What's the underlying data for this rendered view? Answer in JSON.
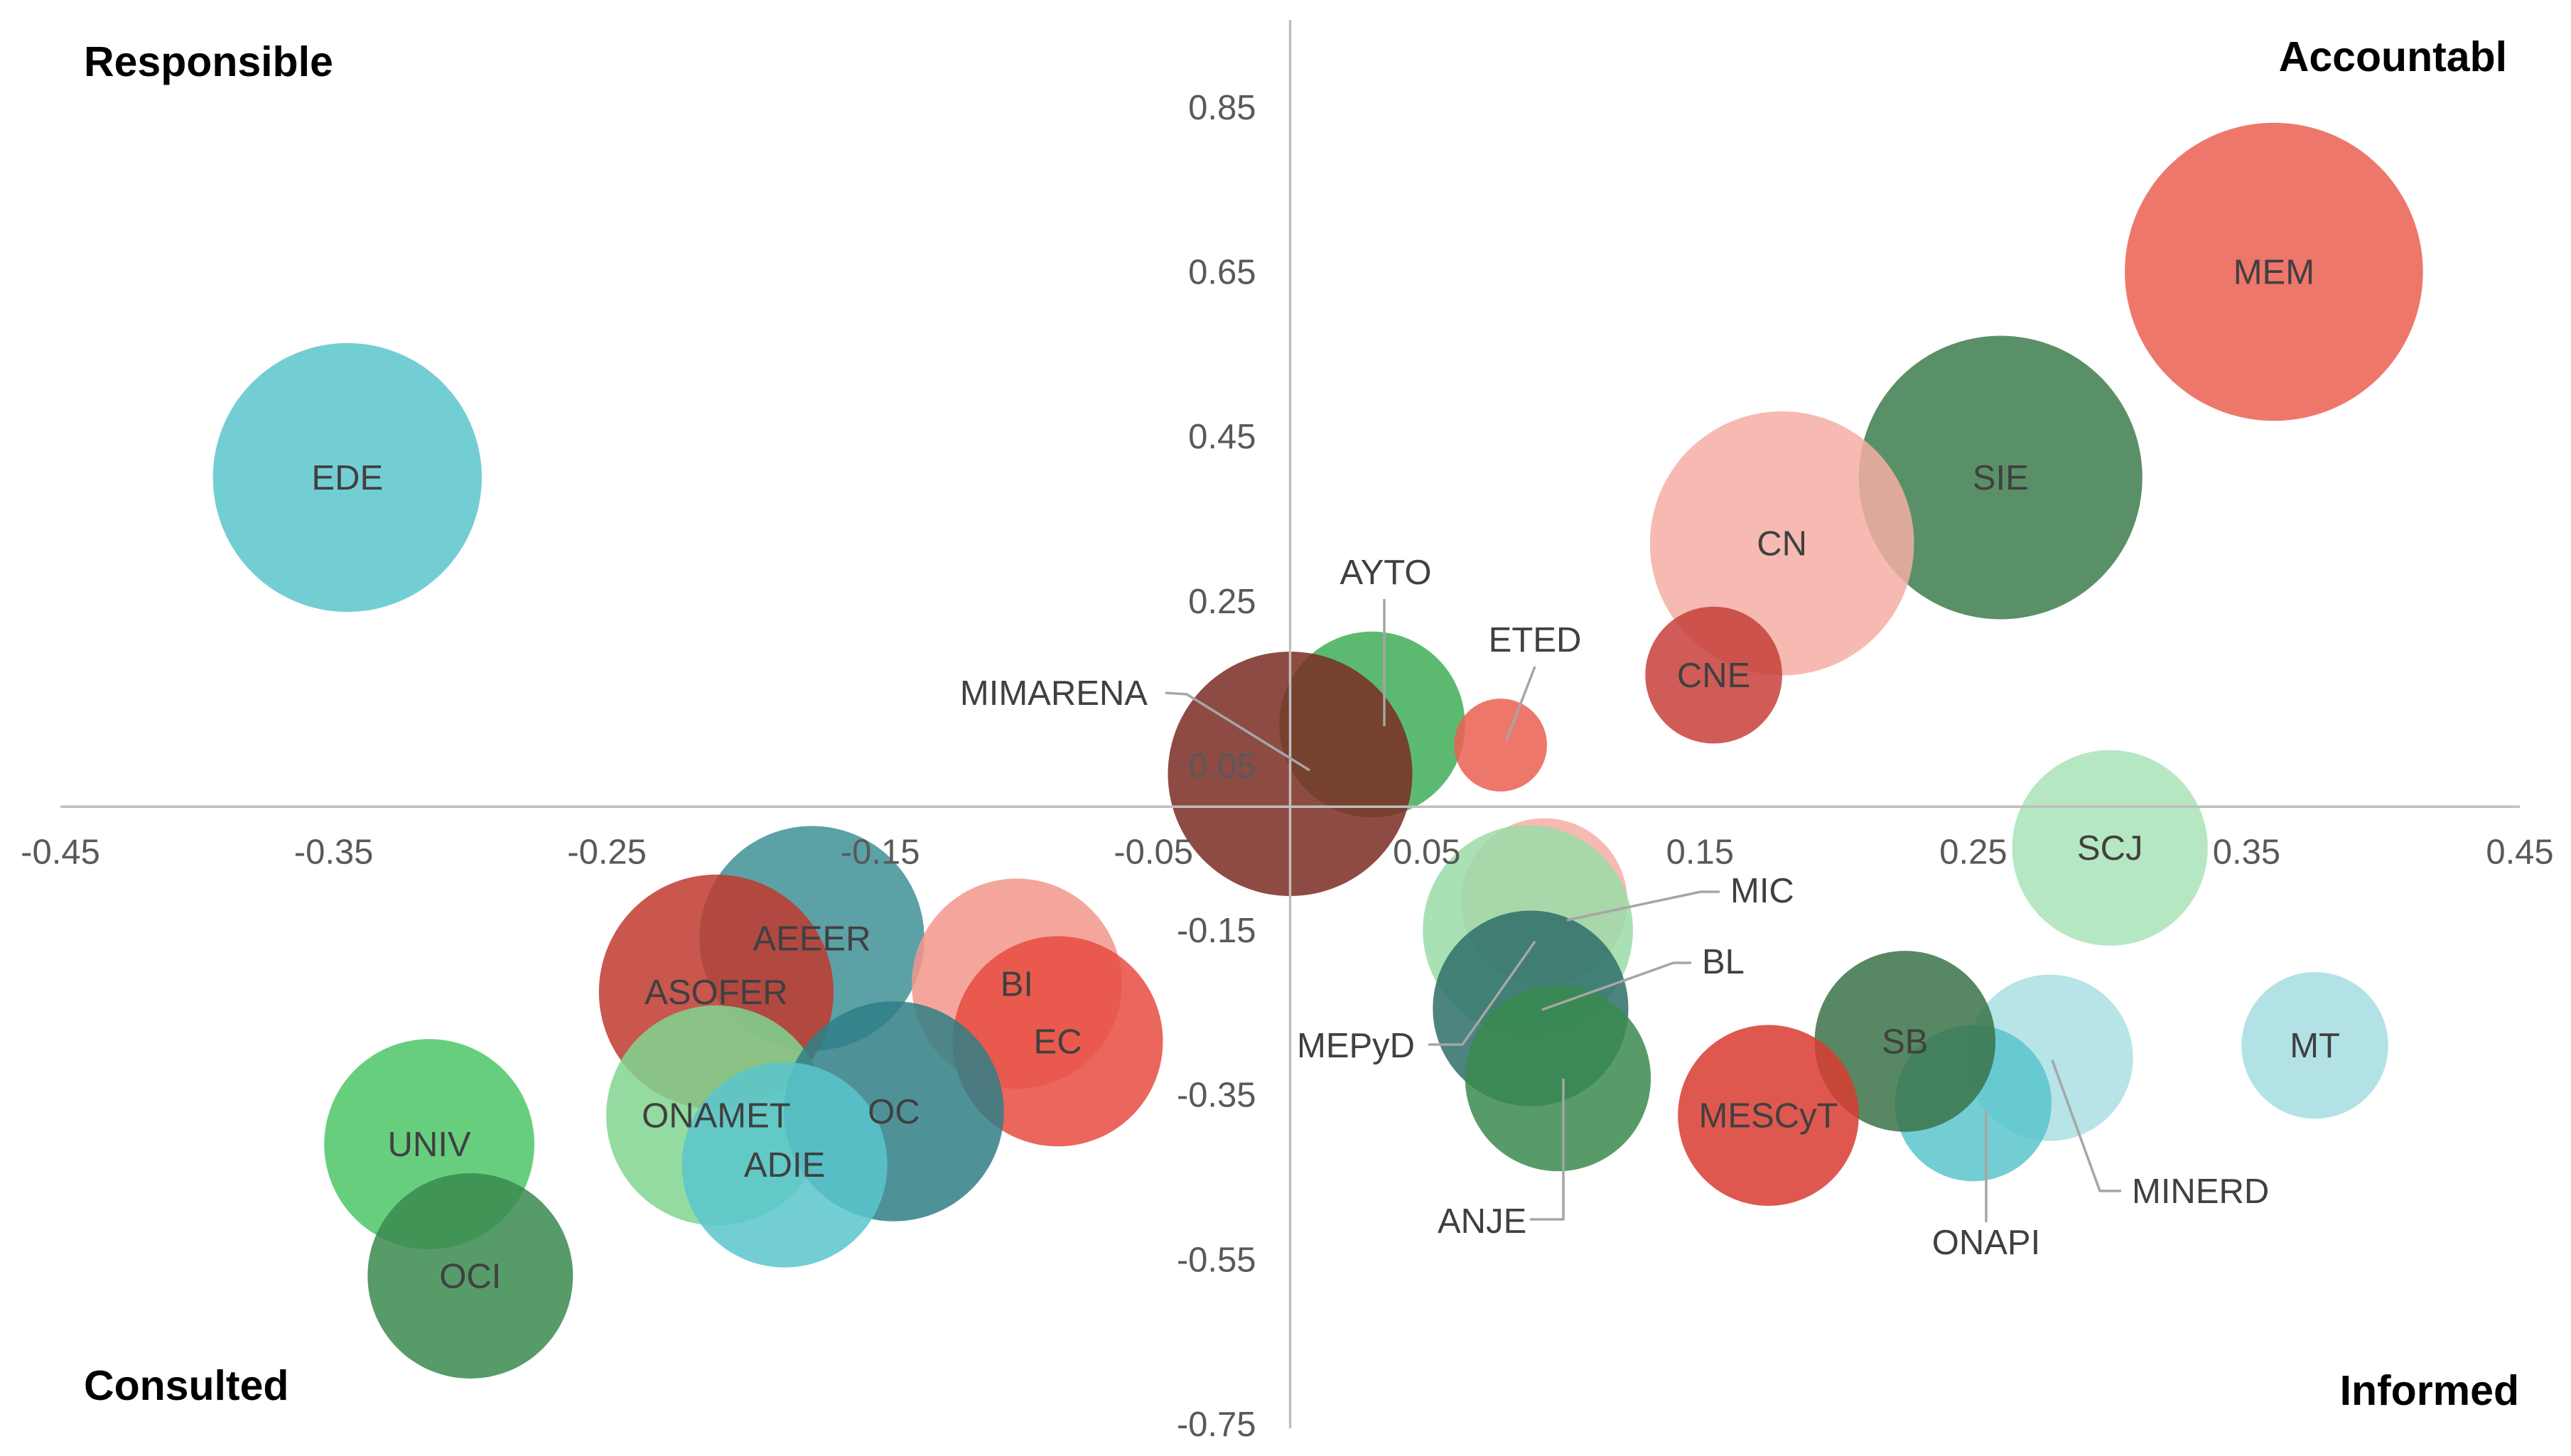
{
  "chart_data": {
    "type": "scatter",
    "variant": "bubble",
    "title": "",
    "xlabel": "",
    "ylabel": "",
    "xlim": [
      -0.45,
      0.45
    ],
    "ylim": [
      -0.75,
      0.95
    ],
    "x_ticks": [
      "-0.45",
      "-0.35",
      "-0.25",
      "-0.15",
      "-0.05",
      "0.05",
      "0.15",
      "0.25",
      "0.35",
      "0.45"
    ],
    "y_ticks": [
      "0.85",
      "0.65",
      "0.45",
      "0.25",
      "0.05",
      "-0.15",
      "-0.35",
      "-0.55",
      "-0.75"
    ],
    "grid": false,
    "legend": "none",
    "quadrant_labels": {
      "top_left": "Responsible",
      "top_right": "Accountabl",
      "bottom_left": "Consulted",
      "bottom_right": "Informed"
    },
    "bubbles": [
      {
        "label": "EDE",
        "x": -0.345,
        "y": 0.4,
        "size": 55,
        "color": "#5BC5CD"
      },
      {
        "label": "MEM",
        "x": 0.36,
        "y": 0.65,
        "size": 61,
        "color": "#EB5F51"
      },
      {
        "label": "SIE",
        "x": 0.26,
        "y": 0.4,
        "size": 58,
        "color": "#3D7D4C"
      },
      {
        "label": "CN",
        "x": 0.18,
        "y": 0.32,
        "size": 54,
        "color": "#F5AEA5"
      },
      {
        "label": "CNE",
        "x": 0.155,
        "y": 0.16,
        "size": 28,
        "color": "#C73F3A"
      },
      {
        "label": "AYTO",
        "x": 0.03,
        "y": 0.1,
        "size": 38,
        "color": "#3FAE57"
      },
      {
        "label": "ETED",
        "x": 0.077,
        "y": 0.075,
        "size": 19,
        "color": "#EB5F51"
      },
      {
        "label": "MIMARENA",
        "x": 0.0,
        "y": 0.04,
        "size": 50,
        "color": "#7A2B22"
      },
      {
        "label": "SCJ",
        "x": 0.3,
        "y": -0.05,
        "size": 40,
        "color": "#A8E3B8"
      },
      {
        "label": "MT",
        "x": 0.375,
        "y": -0.29,
        "size": 30,
        "color": "#A4DDE2"
      },
      {
        "label": "MINERD",
        "x": 0.278,
        "y": -0.305,
        "size": 34,
        "color": "#A9DFE3"
      },
      {
        "label": "ONAPI",
        "x": 0.25,
        "y": -0.36,
        "size": 32,
        "color": "#5BC5CD"
      },
      {
        "label": "SB",
        "x": 0.225,
        "y": -0.285,
        "size": 37,
        "color": "#3A7348"
      },
      {
        "label": "MESCyT",
        "x": 0.175,
        "y": -0.375,
        "size": 37,
        "color": "#D93B30"
      },
      {
        "label": "MIC",
        "x": 0.093,
        "y": -0.115,
        "size": 34,
        "color": "#F5AEA5"
      },
      {
        "label": "MEPyD",
        "x": 0.087,
        "y": -0.15,
        "size": 43,
        "color": "#9ADCA8"
      },
      {
        "label": "BL",
        "x": 0.088,
        "y": -0.245,
        "size": 40,
        "color": "#2E6E6A"
      },
      {
        "label": "ANJE",
        "x": 0.098,
        "y": -0.33,
        "size": 38,
        "color": "#3A8A4F"
      },
      {
        "label": "AEEER",
        "x": -0.175,
        "y": -0.16,
        "size": 46,
        "color": "#3F9096"
      },
      {
        "label": "ASOFER",
        "x": -0.21,
        "y": -0.225,
        "size": 48,
        "color": "#C0392F"
      },
      {
        "label": "BI",
        "x": -0.1,
        "y": -0.215,
        "size": 43,
        "color": "#F2968C"
      },
      {
        "label": "EC",
        "x": -0.085,
        "y": -0.285,
        "size": 43,
        "color": "#E84B3F"
      },
      {
        "label": "ONAMET",
        "x": -0.21,
        "y": -0.375,
        "size": 45,
        "color": "#80D590"
      },
      {
        "label": "OC",
        "x": -0.145,
        "y": -0.37,
        "size": 45,
        "color": "#2F7F86"
      },
      {
        "label": "ADIE",
        "x": -0.185,
        "y": -0.435,
        "size": 42,
        "color": "#5BC5CD"
      },
      {
        "label": "UNIV",
        "x": -0.315,
        "y": -0.41,
        "size": 43,
        "color": "#4CC667"
      },
      {
        "label": "OCI",
        "x": -0.3,
        "y": -0.57,
        "size": 42,
        "color": "#3A8A4F"
      }
    ]
  }
}
